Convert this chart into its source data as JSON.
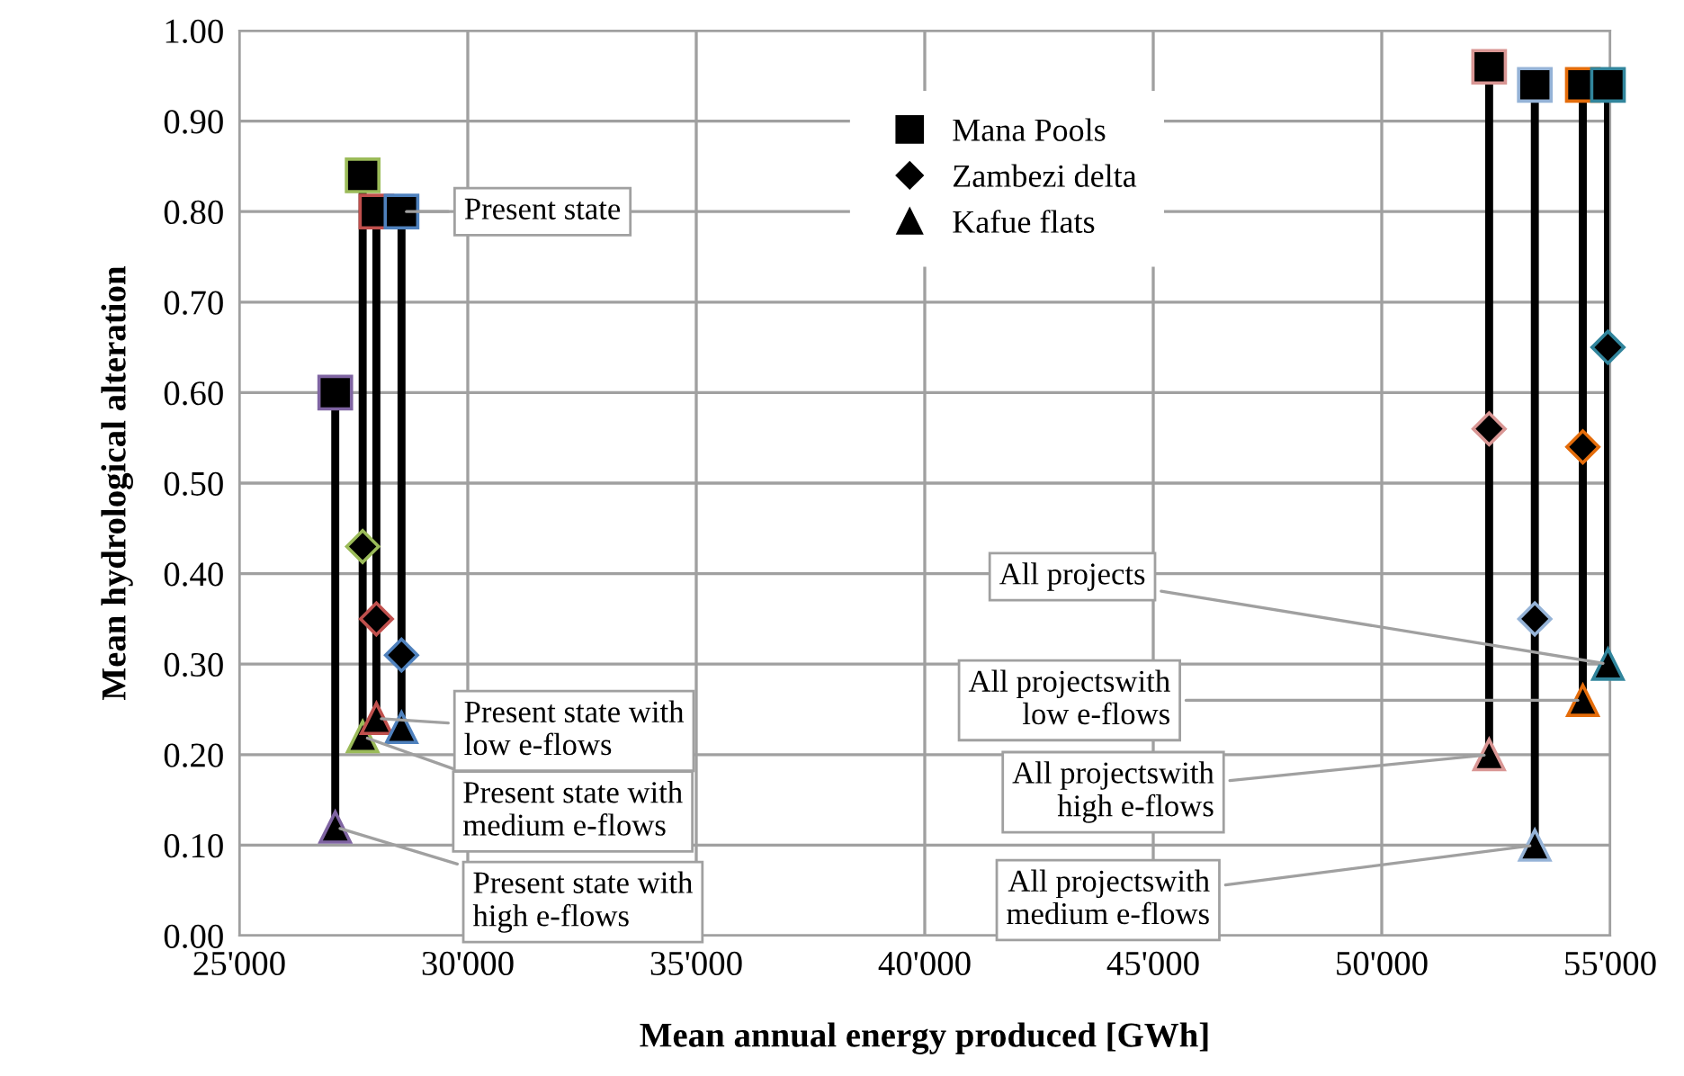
{
  "chart_data": {
    "type": "scatter",
    "xlabel": "Mean annual energy produced [GWh]",
    "ylabel": "Mean hydrological alteration",
    "xlim": [
      25000,
      55000
    ],
    "xticks": [
      {
        "value": 25000,
        "label": "25'000"
      },
      {
        "value": 30000,
        "label": "30'000"
      },
      {
        "value": 35000,
        "label": "35'000"
      },
      {
        "value": 40000,
        "label": "40'000"
      },
      {
        "value": 45000,
        "label": "45'000"
      },
      {
        "value": 50000,
        "label": "50'000"
      },
      {
        "value": 55000,
        "label": "55'000"
      }
    ],
    "ylim": [
      0,
      1
    ],
    "yticks": [
      {
        "value": 0,
        "label": "0.00"
      },
      {
        "value": 0.1,
        "label": "0.10"
      },
      {
        "value": 0.2,
        "label": "0.20"
      },
      {
        "value": 0.3,
        "label": "0.30"
      },
      {
        "value": 0.4,
        "label": "0.40"
      },
      {
        "value": 0.5,
        "label": "0.50"
      },
      {
        "value": 0.6,
        "label": "0.60"
      },
      {
        "value": 0.7,
        "label": "0.70"
      },
      {
        "value": 0.8,
        "label": "0.80"
      },
      {
        "value": 0.9,
        "label": "0.90"
      },
      {
        "value": 1.0,
        "label": "1.00"
      }
    ],
    "grid": true,
    "legend": "top",
    "series": [
      {
        "type": "line",
        "color": "#000000",
        "x": [
          27100,
          27100,
          27100
        ],
        "values": [
          0.6,
          0.6,
          0.12
        ]
      },
      {
        "type": "line",
        "color": "#000000",
        "x": [
          27700,
          27700,
          27700
        ],
        "values": [
          0.84,
          0.43,
          0.22
        ]
      },
      {
        "type": "line",
        "color": "#000000",
        "x": [
          28000,
          28000,
          28000
        ],
        "values": [
          0.8,
          0.35,
          0.24
        ]
      },
      {
        "type": "line",
        "color": "#000000",
        "x": [
          28550,
          28550,
          28550
        ],
        "values": [
          0.8,
          0.31,
          0.23
        ]
      },
      {
        "type": "line",
        "color": "#000000",
        "x": [
          52350,
          52350,
          52350
        ],
        "values": [
          0.96,
          0.56,
          0.2
        ]
      },
      {
        "type": "line",
        "color": "#000000",
        "x": [
          53350,
          53350,
          53350
        ],
        "values": [
          0.94,
          0.35,
          0.1
        ]
      },
      {
        "type": "line",
        "color": "#000000",
        "x": [
          54400,
          54400,
          54400
        ],
        "values": [
          0.94,
          0.54,
          0.26
        ]
      },
      {
        "type": "line",
        "color": "#000000",
        "x": [
          54950,
          54950,
          54950
        ],
        "values": [
          0.94,
          0.65,
          0.3
        ]
      },
      {
        "name": "Mana Pools",
        "marker": "square",
        "color": "#000000",
        "x": [
          27100,
          27700,
          28000,
          28550,
          52350,
          53350,
          54400,
          54950
        ],
        "values": [
          0.6,
          0.84,
          0.8,
          0.8,
          0.96,
          0.94,
          0.94,
          0.94
        ],
        "colors": [
          "#7f64a2",
          "#9bbb59",
          "#c0504d",
          "#4f81bd",
          "#d99694",
          "#95b3d7",
          "#e46c0a",
          "#31859c"
        ]
      },
      {
        "name": "Zambezi delta",
        "marker": "diamond",
        "color": "#000000",
        "x": [
          null,
          27700,
          28000,
          28550,
          52350,
          53350,
          54400,
          54950
        ],
        "values": [
          null,
          0.43,
          0.35,
          0.31,
          0.56,
          0.35,
          0.54,
          0.65
        ],
        "colors": [
          "#7f64a2",
          "#9bbb59",
          "#c0504d",
          "#4f81bd",
          "#d99694",
          "#95b3d7",
          "#e46c0a",
          "#31859c"
        ]
      },
      {
        "name": "Kafue flats",
        "marker": "triangle",
        "color": "#000000",
        "x": [
          27100,
          27700,
          28000,
          28550,
          52350,
          53350,
          54400,
          54950
        ],
        "values": [
          0.12,
          0.22,
          0.24,
          0.23,
          0.2,
          0.1,
          0.26,
          0.3
        ],
        "colors": [
          "#7f64a2",
          "#9bbb59",
          "#c0504d",
          "#4f81bd",
          "#d99694",
          "#95b3d7",
          "#e46c0a",
          "#31859c"
        ]
      }
    ],
    "annotations": [
      {
        "text": "Present state",
        "x": 28550,
        "y": 0.8
      },
      {
        "text": "Present state with\nlow e-flows",
        "x": 28000,
        "y": 0.24
      },
      {
        "text": "Present state with\nmedium e-flows",
        "x": 27700,
        "y": 0.22
      },
      {
        "text": "Present state with\nhigh e-flows",
        "x": 27100,
        "y": 0.12
      },
      {
        "text": "All projects",
        "x": 54950,
        "y": 0.3
      },
      {
        "text": "All projectswith\nlow e-flows",
        "x": 54400,
        "y": 0.26
      },
      {
        "text": "All projectswith\nhigh e-flows",
        "x": 52350,
        "y": 0.2
      },
      {
        "text": "All projectswith\nmedium e-flows",
        "x": 53350,
        "y": 0.1
      }
    ]
  }
}
